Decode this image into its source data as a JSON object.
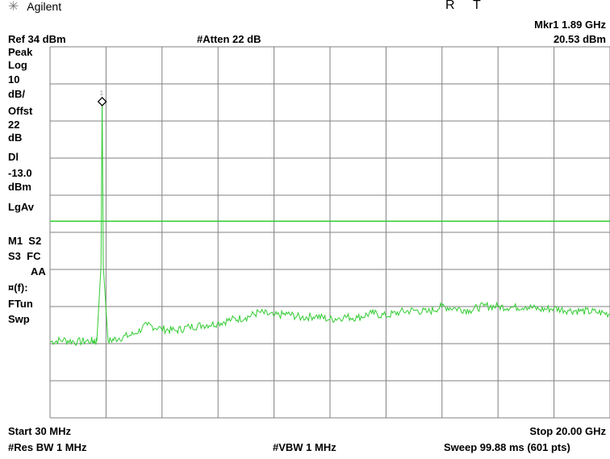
{
  "header": {
    "brand_icon": "agilent-spark-icon",
    "brand": "Agilent",
    "status_r": "R",
    "status_t": "T",
    "marker_freq": "Mkr1  1.89 GHz",
    "marker_amp": "20.53 dBm",
    "ref_level": "Ref 34 dBm",
    "atten": "#Atten 22 dB"
  },
  "sidebar": [
    "Peak",
    "Log",
    "10",
    "dB/",
    "Offst",
    "22",
    "dB",
    "Dl",
    "-13.0",
    "dBm",
    "LgAv",
    "M1  S2",
    "S3  FC",
    "AA",
    "¤(f):",
    "FTun",
    "Swp"
  ],
  "footer": {
    "start": "Start 30 MHz",
    "stop": "Stop 20.00 GHz",
    "rbw": "#Res BW 1 MHz",
    "vbw": "#VBW 1 MHz",
    "sweep": "Sweep 99.88 ms (601 pts)"
  },
  "marker_label": "1",
  "colors": {
    "trace": "#33cc33",
    "display_line": "#33cc33",
    "grid": "#808080",
    "marker": "#000000"
  },
  "chart_data": {
    "type": "line",
    "x_unit": "GHz",
    "y_unit": "dBm",
    "xlim": [
      0.03,
      20.0
    ],
    "ylim": [
      -66,
      34
    ],
    "grid": true,
    "display_line": -13.0,
    "marker": {
      "label": "1",
      "x": 1.89,
      "y": 20.53
    },
    "series": [
      {
        "x": [
          0.03,
          0.5,
          1.0,
          1.5,
          1.7,
          1.85,
          1.89,
          1.93,
          2.1,
          2.5,
          3.0,
          3.5,
          4.0,
          4.5,
          5.0,
          5.5,
          6.0,
          6.5,
          7.0,
          7.5,
          8.0,
          8.5,
          9.0,
          9.5,
          10.0,
          10.5,
          11.0,
          11.5,
          12.0,
          12.5,
          13.0,
          13.5,
          14.0,
          14.5,
          15.0,
          15.5,
          16.0,
          16.5,
          17.0,
          17.5,
          18.0,
          18.5,
          19.0,
          19.5,
          20.0
        ],
        "y": [
          -45.5,
          -45.0,
          -45.5,
          -45.2,
          -45.4,
          -25,
          20.53,
          -25,
          -45.3,
          -44.5,
          -43.5,
          -41.0,
          -42.0,
          -42.5,
          -41.5,
          -41.0,
          -40.5,
          -39.5,
          -39.0,
          -37.5,
          -38.5,
          -38.0,
          -39.0,
          -38.5,
          -39.5,
          -38.8,
          -39.0,
          -37.8,
          -38.5,
          -37.5,
          -37.0,
          -37.5,
          -36.0,
          -36.5,
          -37.0,
          -35.8,
          -36.0,
          -36.2,
          -36.0,
          -36.8,
          -36.5,
          -37.0,
          -37.2,
          -37.5,
          -38.0
        ]
      }
    ]
  }
}
